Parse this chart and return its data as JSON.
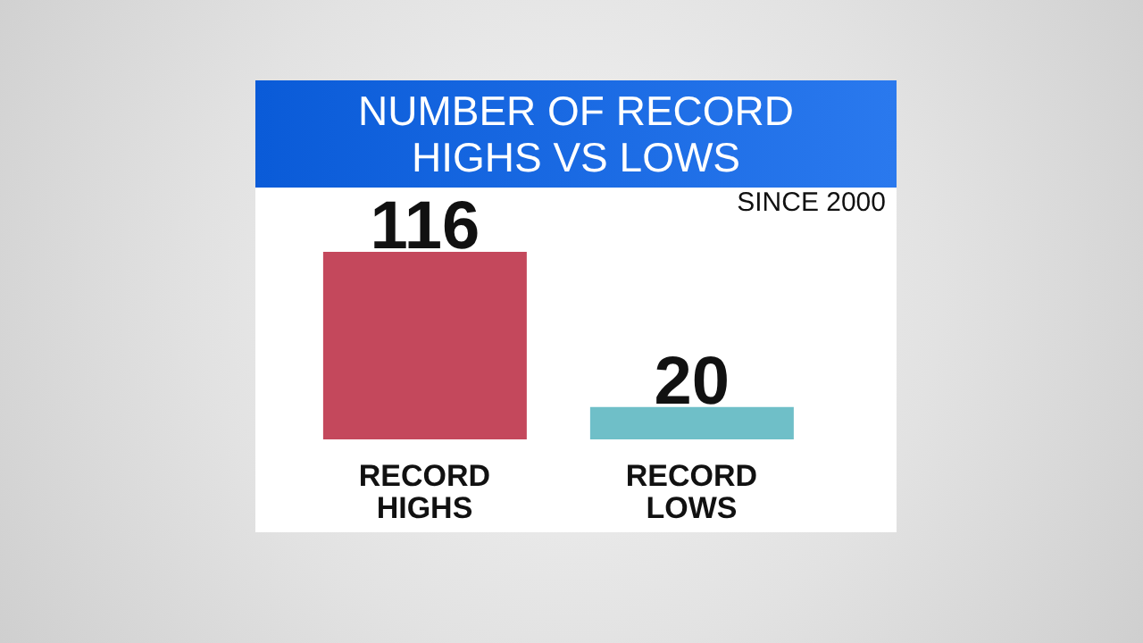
{
  "chart_data": {
    "type": "bar",
    "title": "NUMBER OF RECORD HIGHS VS LOWS",
    "subtitle": "SINCE 2000",
    "categories": [
      "RECORD HIGHS",
      "RECORD LOWS"
    ],
    "values": [
      116,
      20
    ],
    "colors": [
      "#c4485c",
      "#6fbfc8"
    ],
    "data_labels": true,
    "tick_labels": "x"
  }
}
